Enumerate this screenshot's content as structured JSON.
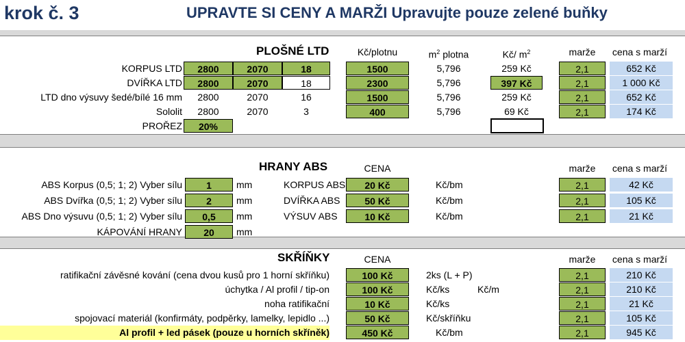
{
  "header": {
    "step": "krok č. 3",
    "title": "UPRAVTE SI CENY A MARŽI Upravujte pouze zelené buňky"
  },
  "ltd": {
    "section_title": "PLOŠNÉ LTD",
    "col_kc_plotnu": "Kč/plotnu",
    "col_m2_prefix": "m",
    "col_m2_sup": "2",
    "col_m2_suffix": " plotna",
    "col_kc_m2_prefix": "Kč/ m",
    "col_kc_m2_sup": "2",
    "col_marze": "marže",
    "col_cena": "cena s marží",
    "rows": [
      {
        "label": "KORPUS LTD",
        "a": "2800",
        "b": "2070",
        "c": "18",
        "price": "1500",
        "area": "5,796",
        "per_m2": "259 Kč",
        "marze": "2,1",
        "cena": "652 Kč"
      },
      {
        "label": "DVÍŘKA LTD",
        "a": "2800",
        "b": "2070",
        "c": "18",
        "price": "2300",
        "area": "5,796",
        "per_m2": "397 Kč",
        "marze": "2,1",
        "cena": "1 000 Kč"
      },
      {
        "label": "LTD dno výsuvy šedé/bílé 16 mm",
        "a": "2800",
        "b": "2070",
        "c": "16",
        "price": "1500",
        "area": "5,796",
        "per_m2": "259 Kč",
        "marze": "2,1",
        "cena": "652 Kč"
      },
      {
        "label": "Sololit",
        "a": "2800",
        "b": "2070",
        "c": "3",
        "price": "400",
        "area": "5,796",
        "per_m2": "69 Kč",
        "marze": "2,1",
        "cena": "174 Kč"
      }
    ],
    "prorez_label": "PROŘEZ",
    "prorez_value": "20%"
  },
  "abs": {
    "section_title": "HRANY ABS",
    "col_cena": "CENA",
    "col_marze": "marže",
    "col_cena_marze": "cena s marží",
    "rows": [
      {
        "label": "ABS Korpus (0,5; 1; 2) Vyber sílu",
        "value": "1",
        "unit": "mm",
        "name": "KORPUS ABS",
        "price": "20 Kč",
        "per": "Kč/bm",
        "marze": "2,1",
        "cena": "42 Kč"
      },
      {
        "label": "ABS Dvířka (0,5; 1; 2) Vyber sílu",
        "value": "2",
        "unit": "mm",
        "name": "DVÍŘKA ABS",
        "price": "50 Kč",
        "per": "Kč/bm",
        "marze": "2,1",
        "cena": "105 Kč"
      },
      {
        "label": "ABS Dno výsuvu (0,5; 1; 2) Vyber sílu",
        "value": "0,5",
        "unit": "mm",
        "name": "VÝSUV ABS",
        "price": "10 Kč",
        "per": "Kč/bm",
        "marze": "2,1",
        "cena": "21 Kč"
      }
    ],
    "kapovani_label": "KÁPOVÁNÍ HRANY",
    "kapovani_value": "20",
    "kapovani_unit": "mm"
  },
  "skrinky": {
    "section_title": "SKŘÍŇKY",
    "col_cena": "CENA",
    "col_marze": "marže",
    "col_cena_marze": "cena s marží",
    "rows": [
      {
        "label": "ratifikační závěsné kování (cena dvou kusů pro 1 horní skříňku)",
        "price": "100 Kč",
        "per": "2ks (L + P)",
        "per2": "",
        "marze": "2,1",
        "cena": "210 Kč"
      },
      {
        "label": "úchytka / Al profil / tip-on",
        "price": "100 Kč",
        "per": "Kč/ks",
        "per2": "Kč/m",
        "marze": "2,1",
        "cena": "210 Kč"
      },
      {
        "label": "noha ratifikační",
        "price": "10 Kč",
        "per": "Kč/ks",
        "per2": "",
        "marze": "2,1",
        "cena": "21 Kč"
      },
      {
        "label": "spojovací materiál (konfirmáty, podpěrky, lamelky, lepidlo ...)",
        "price": "50 Kč",
        "per": "Kč/skříňku",
        "per2": "",
        "marze": "2,1",
        "cena": "105 Kč"
      },
      {
        "label": "Al profil + led pásek (pouze u horních skříněk)",
        "price": "450 Kč",
        "per": "Kč/bm",
        "per2": "",
        "marze": "2,1",
        "cena": "945 Kč"
      }
    ]
  }
}
